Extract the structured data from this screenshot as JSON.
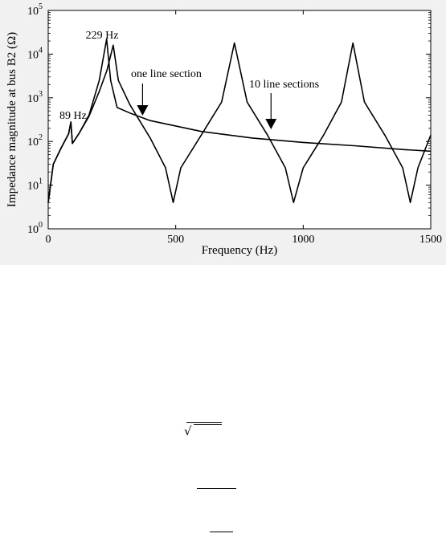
{
  "chart_data": {
    "type": "line",
    "xlabel": "Frequency (Hz)",
    "ylabel": "Impedance magnitude at bus B2 (Ω)",
    "xlim": [
      0,
      1500
    ],
    "ylim": [
      1,
      100000
    ],
    "yscale": "log",
    "xticks": [
      0,
      500,
      1000,
      1500
    ],
    "yticks": [
      {
        "value": 1,
        "base": "10",
        "exp": "0"
      },
      {
        "value": 10,
        "base": "10",
        "exp": "1"
      },
      {
        "value": 100,
        "base": "10",
        "exp": "2"
      },
      {
        "value": 1000,
        "base": "10",
        "exp": "3"
      },
      {
        "value": 10000,
        "base": "10",
        "exp": "4"
      },
      {
        "value": 100000,
        "base": "10",
        "exp": "5"
      }
    ],
    "grid": false,
    "series": [
      {
        "id": "one",
        "x": [
          0,
          20,
          50,
          80,
          89,
          95,
          120,
          160,
          200,
          229,
          245,
          270,
          320,
          400,
          600,
          800,
          1000,
          1200,
          1400,
          1500
        ],
        "y": [
          4,
          30,
          70,
          150,
          280,
          90,
          150,
          400,
          2500,
          22000,
          2500,
          600,
          450,
          300,
          170,
          120,
          95,
          80,
          65,
          60
        ]
      },
      {
        "id": "ten",
        "x": [
          0,
          20,
          50,
          80,
          89,
          95,
          120,
          160,
          200,
          230,
          255,
          275,
          320,
          400,
          460,
          490,
          520,
          600,
          680,
          730,
          780,
          860,
          930,
          962,
          1000,
          1080,
          1150,
          1195,
          1240,
          1320,
          1390,
          1420,
          1450,
          1500
        ],
        "y": [
          4,
          30,
          70,
          150,
          280,
          90,
          150,
          380,
          1400,
          4200,
          16000,
          2500,
          700,
          120,
          25,
          4,
          25,
          140,
          800,
          18000,
          800,
          140,
          25,
          4,
          25,
          140,
          800,
          18000,
          800,
          140,
          25,
          4,
          25,
          140
        ]
      }
    ],
    "annotations": [
      {
        "text": "229 Hz",
        "x": 229,
        "y": 22000
      },
      {
        "text": "89 Hz",
        "x": 89,
        "y": 280
      },
      {
        "text": "one line section",
        "x": 370,
        "y": 500
      },
      {
        "text": "10 line sections",
        "x": 880,
        "y": 160
      }
    ]
  },
  "equations": {
    "sqrt_symbol": "√"
  }
}
